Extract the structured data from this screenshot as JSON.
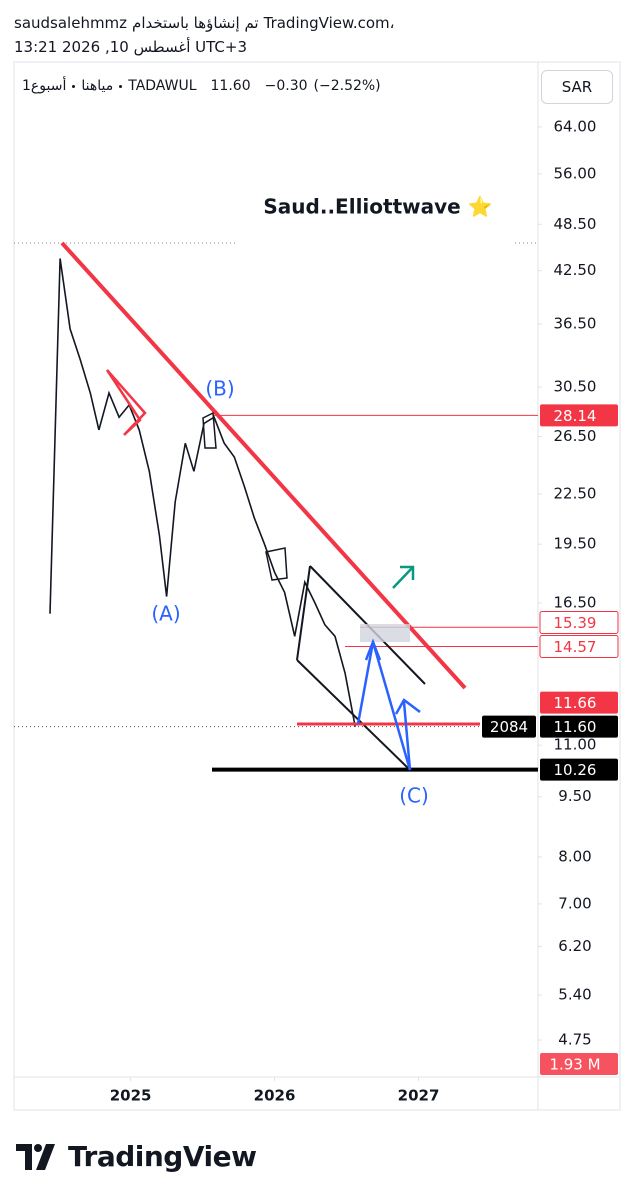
{
  "header": {
    "line1": [
      "saudsalehmmz",
      "تم إنشاؤها باستخدام",
      "TradingView.com،"
    ],
    "line2": "13:21 2026 ,10 أغسطس UTC+3"
  },
  "legend": {
    "parts": [
      "1أسبوع",
      "مياهنا",
      "TADAWUL"
    ],
    "last": {
      "value": 11.6,
      "label": "11.60"
    },
    "change": {
      "value": -0.3,
      "label": "−0.30"
    },
    "change_pct": {
      "value": -2.52,
      "label": "(−2.52%)"
    }
  },
  "currency_button": "SAR",
  "chart_data": {
    "type": "line",
    "color": "#131722",
    "log_scale": true,
    "grid": false,
    "x": [
      2024.44,
      2024.51,
      2024.58,
      2024.65,
      2024.72,
      2024.78,
      2024.85,
      2024.92,
      2024.99,
      2025.06,
      2025.13,
      2025.2,
      2025.25,
      2025.31,
      2025.38,
      2025.44,
      2025.51,
      2025.58,
      2025.65,
      2025.72,
      2025.79,
      2025.86,
      2025.93,
      2026.0,
      2026.07,
      2026.14,
      2026.21,
      2026.28,
      2026.35,
      2026.42,
      2026.49,
      2026.56
    ],
    "values": [
      16,
      44,
      36,
      33,
      30,
      27,
      30,
      28,
      29,
      27,
      24,
      20,
      16.8,
      22,
      26,
      24,
      27.5,
      28,
      26,
      25,
      23,
      21,
      19.5,
      18,
      17,
      15,
      17.5,
      16.5,
      15.5,
      15,
      13.5,
      11.6
    ],
    "xlim": [
      2024.19,
      2027.83
    ],
    "xticks": [
      2025,
      2026,
      2027
    ],
    "ylim": [
      4.3,
      77
    ],
    "yticks": [
      {
        "value": 64,
        "label": "64.00"
      },
      {
        "value": 56,
        "label": "56.00"
      },
      {
        "value": 48.5,
        "label": "48.50"
      },
      {
        "value": 42.5,
        "label": "42.50"
      },
      {
        "value": 36.5,
        "label": "36.50"
      },
      {
        "value": 30.5,
        "label": "30.50"
      },
      {
        "value": 26.5,
        "label": "26.50"
      },
      {
        "value": 22.5,
        "label": "22.50"
      },
      {
        "value": 19.5,
        "label": "19.50"
      },
      {
        "value": 16.5,
        "label": "16.50"
      },
      {
        "value": 11,
        "label": "11.00"
      },
      {
        "value": 9.5,
        "label": "9.50"
      },
      {
        "value": 8,
        "label": "8.00"
      },
      {
        "value": 7,
        "label": "7.00"
      },
      {
        "value": 6.2,
        "label": "6.20"
      },
      {
        "value": 5.4,
        "label": "5.40"
      },
      {
        "value": 4.75,
        "label": "4.75"
      }
    ],
    "price_labels": [
      {
        "value": 28.14,
        "label": "28.14",
        "color": "#f23645"
      },
      {
        "value": 15.39,
        "label": "15.39",
        "color": "#ffffff"
      },
      {
        "value": 14.57,
        "label": "14.57",
        "color": "#ffffff"
      },
      {
        "value": 11.66,
        "label": "11.66",
        "color": "#f23645"
      },
      {
        "value": 11.6,
        "label": "11.60",
        "color": "#000000",
        "badge": "2084"
      },
      {
        "value": 10.26,
        "label": "10.26",
        "color": "#000000"
      }
    ],
    "volume_label": {
      "value": 1930000,
      "label": "1.93 M"
    },
    "annotations": {
      "title": "Saud..Elliottwave ⭐",
      "wave_a": "(A)",
      "wave_b": "(B)",
      "wave_c": "(C)"
    }
  },
  "footer": {
    "brand": "TradingView"
  }
}
